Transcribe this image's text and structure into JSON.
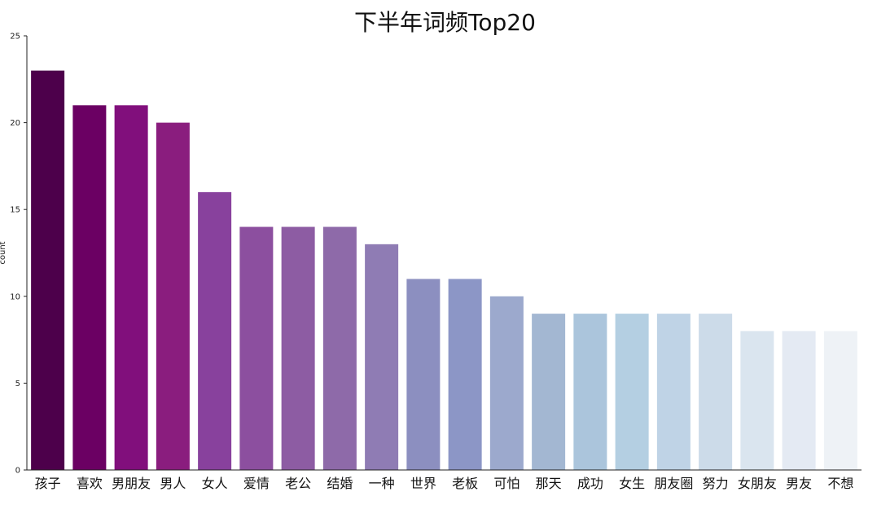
{
  "chart_data": {
    "type": "bar",
    "title": "下半年词频Top20",
    "xlabel": "",
    "ylabel": "count",
    "ylim": [
      0,
      25
    ],
    "yticks": [
      0,
      5,
      10,
      15,
      20,
      25
    ],
    "grid": false,
    "categories": [
      "孩子",
      "喜欢",
      "男朋友",
      "男人",
      "女人",
      "爱情",
      "老公",
      "结婚",
      "一种",
      "世界",
      "老板",
      "可怕",
      "那天",
      "成功",
      "女生",
      "朋友圈",
      "努力",
      "女朋友",
      "男友",
      "不想"
    ],
    "values": [
      23,
      21,
      21,
      20,
      16,
      14,
      14,
      14,
      13,
      11,
      11,
      10,
      9,
      9,
      9,
      9,
      9,
      8,
      8,
      8
    ],
    "colors": [
      "#4d004b",
      "#6b0063",
      "#810f7c",
      "#8a1d7e",
      "#88419d",
      "#8c4f9f",
      "#8d5ca3",
      "#8e6aa9",
      "#8f7cb4",
      "#8c8fc0",
      "#8c96c6",
      "#9ca9cd",
      "#a3b7d2",
      "#abc5dc",
      "#b4cfe2",
      "#bfd3e6",
      "#ccdbe9",
      "#dae5ef",
      "#e4eaf3",
      "#eef2f6"
    ]
  }
}
